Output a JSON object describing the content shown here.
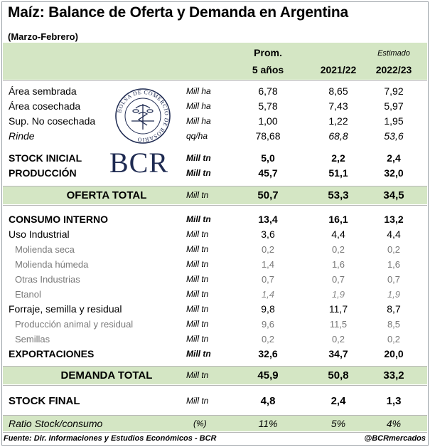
{
  "title": "Maíz: Balance de Oferta y Demanda en Argentina",
  "subtitle": "(Marzo-Febrero)",
  "headers": {
    "col1_line1": "Prom.",
    "col1_line2": "5 años",
    "col2": "2021/22",
    "col3_note": "Estimado",
    "col3": "2022/23"
  },
  "logo": {
    "seal_text": "BOLSA DE COMERCIO DE ROSARIO",
    "wordmark": "BCR"
  },
  "rows": [
    {
      "label": "Área sembrada",
      "unit": "Mill ha",
      "v1": "6,78",
      "v2": "8,65",
      "v3": "7,92"
    },
    {
      "label": "Área cosechada",
      "unit": "Mill ha",
      "v1": "5,78",
      "v2": "7,43",
      "v3": "5,97"
    },
    {
      "label": "Sup. No cosechada",
      "unit": "Mill ha",
      "v1": "1,00",
      "v2": "1,22",
      "v3": "1,95"
    },
    {
      "label": "Rinde",
      "unit": "qq/ha",
      "v1": "78,68",
      "v2": "68,8",
      "v3": "53,6"
    },
    {
      "label": "STOCK INICIAL",
      "unit": "Mill tn",
      "v1": "5,0",
      "v2": "2,2",
      "v3": "2,4"
    },
    {
      "label": "PRODUCCIÓN",
      "unit": "Mill tn",
      "v1": "45,7",
      "v2": "51,1",
      "v3": "32,0"
    },
    {
      "label": "OFERTA TOTAL",
      "unit": "Mill tn",
      "v1": "50,7",
      "v2": "53,3",
      "v3": "34,5"
    },
    {
      "label": "CONSUMO INTERNO",
      "unit": "Mill tn",
      "v1": "13,4",
      "v2": "16,1",
      "v3": "13,2"
    },
    {
      "label": "Uso Industrial",
      "unit": "Mill tn",
      "v1": "3,6",
      "v2": "4,4",
      "v3": "4,4"
    },
    {
      "label": "Molienda seca",
      "unit": "Mill tn",
      "v1": "0,2",
      "v2": "0,2",
      "v3": "0,2"
    },
    {
      "label": "Molienda húmeda",
      "unit": "Mill tn",
      "v1": "1,4",
      "v2": "1,6",
      "v3": "1,6"
    },
    {
      "label": "Otras Industrias",
      "unit": "Mill tn",
      "v1": "0,7",
      "v2": "0,7",
      "v3": "0,7"
    },
    {
      "label": "Etanol",
      "unit": "Mill tn",
      "v1": "1,4",
      "v2": "1,9",
      "v3": "1,9"
    },
    {
      "label": "Forraje, semilla y residual",
      "unit": "Mill tn",
      "v1": "9,8",
      "v2": "11,7",
      "v3": "8,7"
    },
    {
      "label": "Producción animal y residual",
      "unit": "Mill tn",
      "v1": "9,6",
      "v2": "11,5",
      "v3": "8,5"
    },
    {
      "label": "Semillas",
      "unit": "Mill tn",
      "v1": "0,2",
      "v2": "0,2",
      "v3": "0,2"
    },
    {
      "label": "EXPORTACIONES",
      "unit": "Mill tn",
      "v1": "32,6",
      "v2": "34,7",
      "v3": "20,0"
    },
    {
      "label": "DEMANDA TOTAL",
      "unit": "Mill tn",
      "v1": "45,9",
      "v2": "50,8",
      "v3": "33,2"
    },
    {
      "label": "STOCK FINAL",
      "unit": "Mill tn",
      "v1": "4,8",
      "v2": "2,4",
      "v3": "1,3"
    },
    {
      "label": "Ratio Stock/consumo",
      "unit": "(%)",
      "v1": "11%",
      "v2": "5%",
      "v3": "4%"
    }
  ],
  "footer": {
    "source": "Fuente: Dir. Informaciones y Estudios Económicos - BCR",
    "handle": "@BCRmercados"
  },
  "colors": {
    "highlight_band": "#d4e6c4",
    "logo_navy": "#1f2b52"
  }
}
